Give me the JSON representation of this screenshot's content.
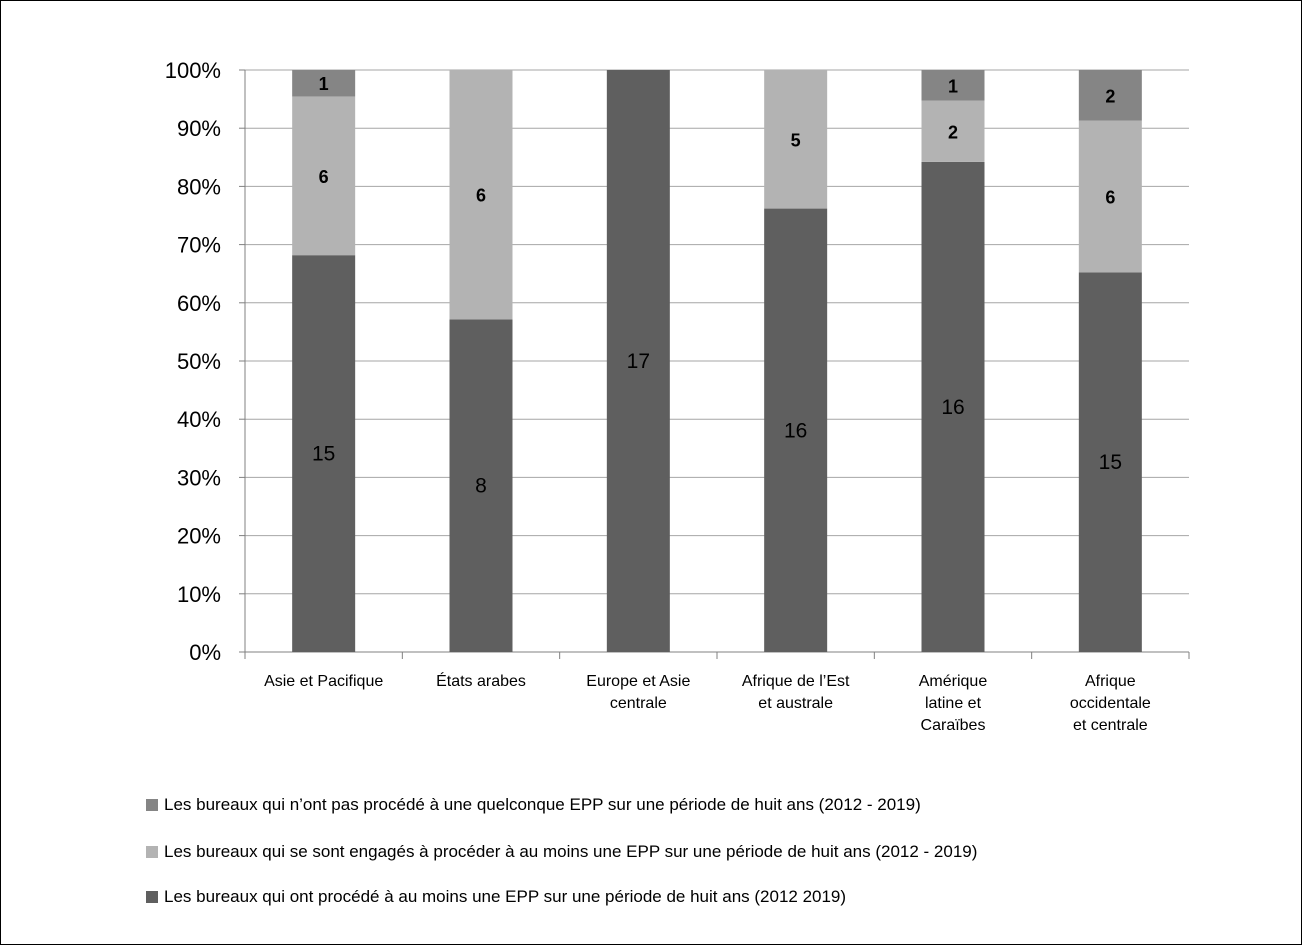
{
  "chart_data": {
    "type": "bar",
    "stacked": true,
    "percent_stacked": true,
    "categories": [
      [
        "Asie et Pacifique"
      ],
      [
        "États arabes"
      ],
      [
        "Europe et Asie",
        "centrale"
      ],
      [
        "Afrique de l’Est",
        "et australe"
      ],
      [
        "Amérique",
        "latine et",
        "Caraïbes"
      ],
      [
        "Afrique",
        "occidentale",
        "et centrale"
      ]
    ],
    "series": [
      {
        "name": "Les bureaux qui ont procédé à au moins une EPP sur une période de huit ans (2012 2019)",
        "values": [
          15,
          8,
          17,
          16,
          16,
          15
        ],
        "color": "#5f5f5f",
        "label_bold": false
      },
      {
        "name": "Les bureaux qui se sont engagés à procéder à au moins une EPP sur une période de huit ans (2012 - 2019)",
        "values": [
          6,
          6,
          0,
          5,
          2,
          6
        ],
        "color": "#b3b3b3",
        "label_bold": true
      },
      {
        "name": "Les bureaux qui n’ont pas procédé à une quelconque EPP sur une période de huit ans (2012 - 2019)",
        "values": [
          1,
          0,
          0,
          0,
          1,
          2
        ],
        "color": "#858585",
        "label_bold": true
      }
    ],
    "y_ticks": [
      "0%",
      "10%",
      "20%",
      "30%",
      "40%",
      "50%",
      "60%",
      "70%",
      "80%",
      "90%",
      "100%"
    ],
    "ylim": [
      0,
      100
    ],
    "grid": true,
    "legend_position": "bottom"
  }
}
